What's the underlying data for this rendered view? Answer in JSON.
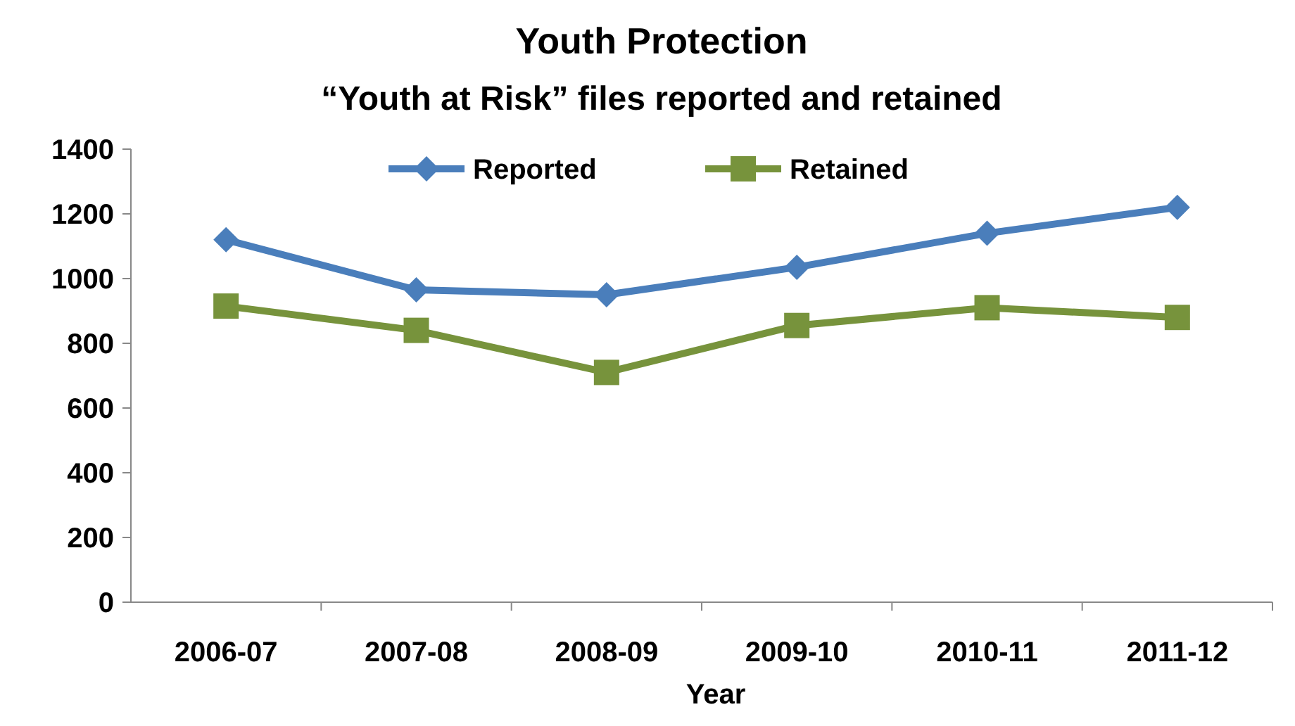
{
  "chart_data": {
    "type": "line",
    "title": "Youth Protection",
    "subtitle": "“Youth at Risk” files reported and retained",
    "xlabel": "Year",
    "categories": [
      "2006-07",
      "2007-08",
      "2008-09",
      "2009-10",
      "2010-11",
      "2011-12"
    ],
    "series": [
      {
        "name": "Reported",
        "color": "#4a7ebb",
        "marker": "diamond",
        "values": [
          1120,
          965,
          950,
          1035,
          1140,
          1220
        ]
      },
      {
        "name": "Retained",
        "color": "#77933c",
        "marker": "square",
        "values": [
          915,
          840,
          710,
          855,
          910,
          880
        ]
      }
    ],
    "ylim": [
      0,
      1400
    ],
    "yticks": [
      0,
      200,
      400,
      600,
      800,
      1000,
      1200,
      1400
    ],
    "grid": false,
    "legend": "top",
    "line_style": "solid"
  }
}
